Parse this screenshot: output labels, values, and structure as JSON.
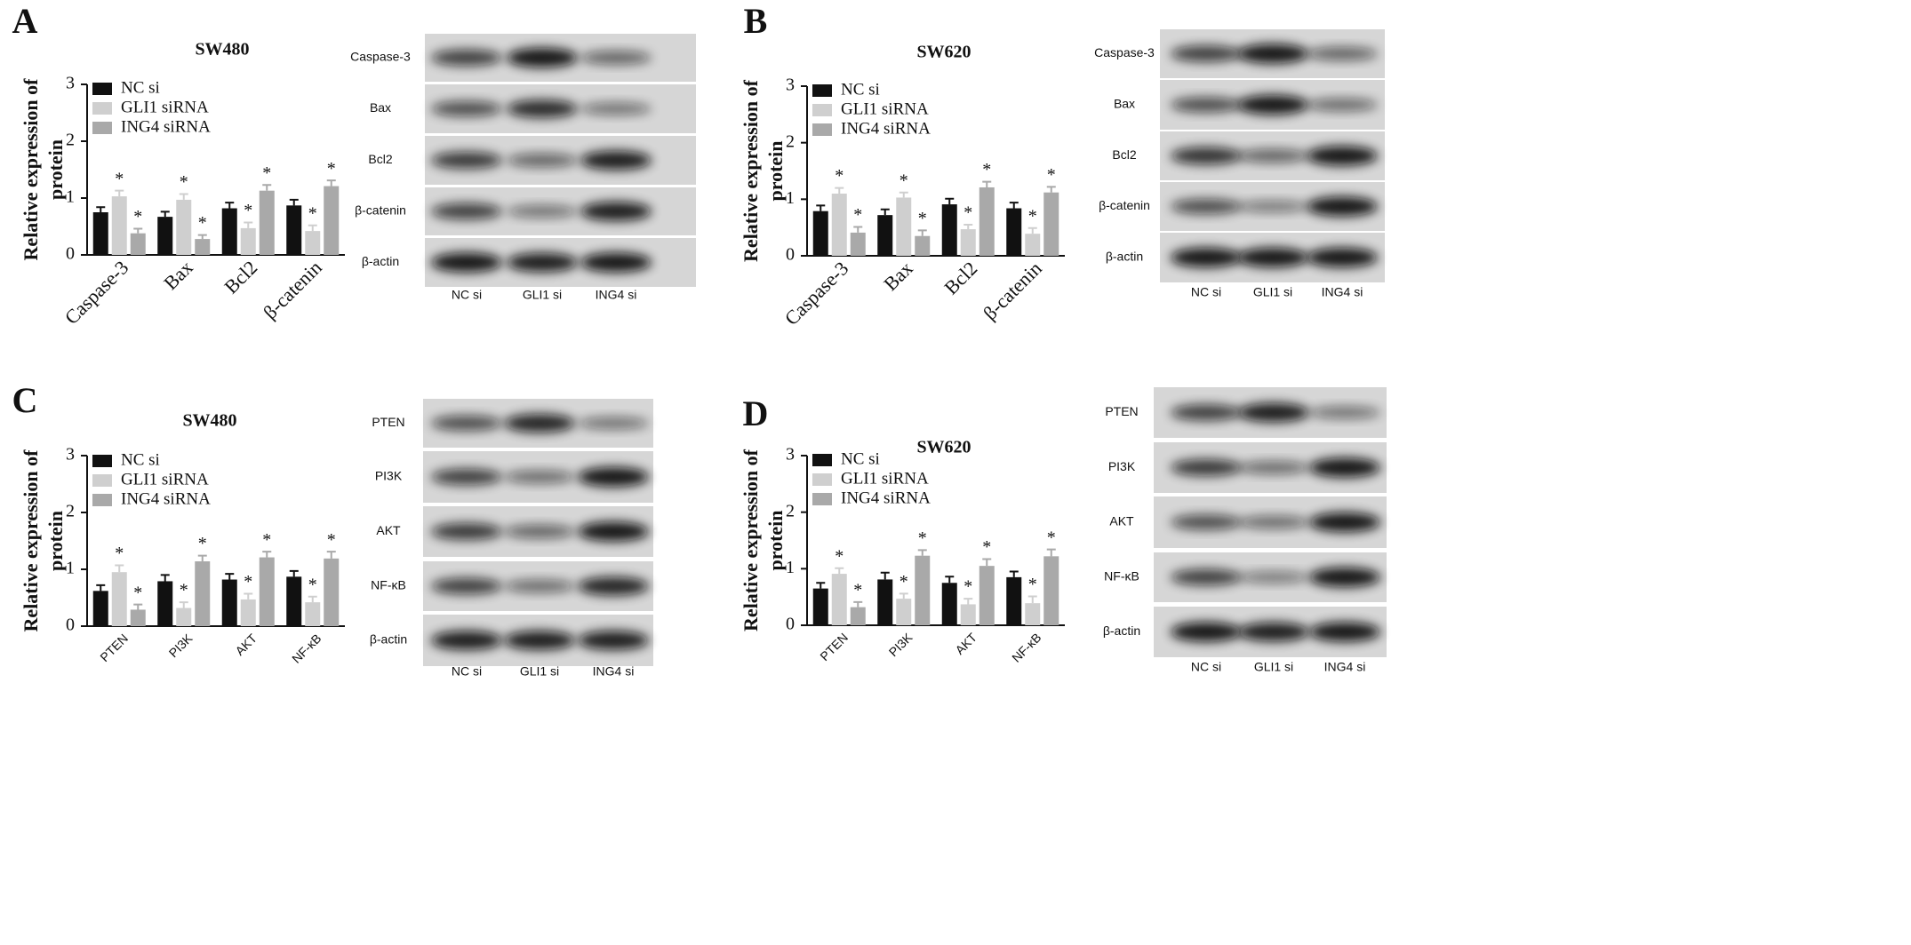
{
  "chart_data": [
    {
      "type": "bar",
      "panel": "A",
      "title": "SW480",
      "ylabel": [
        "Relative expression of",
        "protein"
      ],
      "categories": [
        "Caspase-3",
        "Bax",
        "Bcl2",
        "β-catenin"
      ],
      "series": [
        {
          "name": "NC si",
          "color": "#111111",
          "values": [
            0.75,
            0.67,
            0.82,
            0.87
          ],
          "errors": [
            0.09,
            0.09,
            0.1,
            0.1
          ],
          "significance": [
            null,
            null,
            null,
            null
          ]
        },
        {
          "name": "GLI1 siRNA",
          "color": "#cfcfcf",
          "values": [
            1.03,
            0.97,
            0.47,
            0.42
          ],
          "errors": [
            0.1,
            0.1,
            0.1,
            0.1
          ],
          "significance": [
            "*",
            "*",
            "*",
            "*"
          ]
        },
        {
          "name": "ING4 siRNA",
          "color": "#a9a9a9",
          "values": [
            0.38,
            0.28,
            1.13,
            1.21
          ],
          "errors": [
            0.08,
            0.07,
            0.1,
            0.1
          ],
          "significance": [
            "*",
            "*",
            "*",
            "*"
          ]
        }
      ],
      "ylim": [
        0,
        3
      ],
      "yticks": [
        0,
        1,
        2,
        3
      ],
      "blot": {
        "rows": [
          "Caspase-3",
          "Bax",
          "Bcl2",
          "β-catenin",
          "β-actin"
        ],
        "lanes": [
          "NC si",
          "GLI1 si",
          "ING4 si"
        ]
      }
    },
    {
      "type": "bar",
      "panel": "B",
      "title": "SW620",
      "ylabel": [
        "Relative expression of",
        "protein"
      ],
      "categories": [
        "Caspase-3",
        "Bax",
        "Bcl2",
        "β-catenin"
      ],
      "series": [
        {
          "name": "NC si",
          "color": "#111111",
          "values": [
            0.79,
            0.72,
            0.91,
            0.84
          ],
          "errors": [
            0.1,
            0.1,
            0.1,
            0.1
          ],
          "significance": [
            null,
            null,
            null,
            null
          ]
        },
        {
          "name": "GLI1 siRNA",
          "color": "#cfcfcf",
          "values": [
            1.1,
            1.03,
            0.47,
            0.39
          ],
          "errors": [
            0.1,
            0.09,
            0.08,
            0.1
          ],
          "significance": [
            "*",
            "*",
            "*",
            "*"
          ]
        },
        {
          "name": "ING4 siRNA",
          "color": "#a9a9a9",
          "values": [
            0.41,
            0.35,
            1.21,
            1.12
          ],
          "errors": [
            0.1,
            0.1,
            0.1,
            0.1
          ],
          "significance": [
            "*",
            "*",
            "*",
            "*"
          ]
        }
      ],
      "ylim": [
        0,
        3
      ],
      "yticks": [
        0,
        1,
        2,
        3
      ],
      "blot": {
        "rows": [
          "Caspase-3",
          "Bax",
          "Bcl2",
          "β-catenin",
          "β-actin"
        ],
        "lanes": [
          "NC si",
          "GLI1 si",
          "ING4 si"
        ]
      }
    },
    {
      "type": "bar",
      "panel": "C",
      "title": "SW480",
      "ylabel": [
        "Relative expression of",
        "protein"
      ],
      "categories": [
        "PTEN",
        "PI3K",
        "AKT",
        "NF-κB"
      ],
      "series": [
        {
          "name": "NC si",
          "color": "#111111",
          "values": [
            0.62,
            0.79,
            0.82,
            0.87
          ],
          "errors": [
            0.1,
            0.11,
            0.1,
            0.1
          ],
          "significance": [
            null,
            null,
            null,
            null
          ]
        },
        {
          "name": "GLI1 siRNA",
          "color": "#cfcfcf",
          "values": [
            0.95,
            0.32,
            0.47,
            0.42
          ],
          "errors": [
            0.12,
            0.1,
            0.1,
            0.1
          ],
          "significance": [
            "*",
            "*",
            "*",
            "*"
          ]
        },
        {
          "name": "ING4 siRNA",
          "color": "#a9a9a9",
          "values": [
            0.29,
            1.14,
            1.21,
            1.19
          ],
          "errors": [
            0.09,
            0.1,
            0.1,
            0.12
          ],
          "significance": [
            "*",
            "*",
            "*",
            "*"
          ]
        }
      ],
      "ylim": [
        0,
        3
      ],
      "yticks": [
        0,
        1,
        2,
        3
      ],
      "blot": {
        "rows": [
          "PTEN",
          "PI3K",
          "AKT",
          "NF-κB",
          "β-actin"
        ],
        "lanes": [
          "NC si",
          "GLI1 si",
          "ING4 si"
        ]
      }
    },
    {
      "type": "bar",
      "panel": "D",
      "title": "SW620",
      "ylabel": [
        "Relative expression of",
        "protein"
      ],
      "categories": [
        "PTEN",
        "PI3K",
        "AKT",
        "NF-κB"
      ],
      "series": [
        {
          "name": "NC si",
          "color": "#111111",
          "values": [
            0.65,
            0.81,
            0.75,
            0.85
          ],
          "errors": [
            0.1,
            0.12,
            0.11,
            0.1
          ],
          "significance": [
            null,
            null,
            null,
            null
          ]
        },
        {
          "name": "GLI1 siRNA",
          "color": "#cfcfcf",
          "values": [
            0.91,
            0.47,
            0.37,
            0.39
          ],
          "errors": [
            0.1,
            0.09,
            0.1,
            0.12
          ],
          "significance": [
            "*",
            "*",
            "*",
            "*"
          ]
        },
        {
          "name": "ING4 siRNA",
          "color": "#a9a9a9",
          "values": [
            0.32,
            1.23,
            1.05,
            1.22
          ],
          "errors": [
            0.09,
            0.1,
            0.12,
            0.12
          ],
          "significance": [
            "*",
            "*",
            "*",
            "*"
          ]
        }
      ],
      "ylim": [
        0,
        3
      ],
      "yticks": [
        0,
        1,
        2,
        3
      ],
      "blot": {
        "rows": [
          "PTEN",
          "PI3K",
          "AKT",
          "NF-κB",
          "β-actin"
        ],
        "lanes": [
          "NC si",
          "GLI1 si",
          "ING4 si"
        ]
      }
    }
  ]
}
